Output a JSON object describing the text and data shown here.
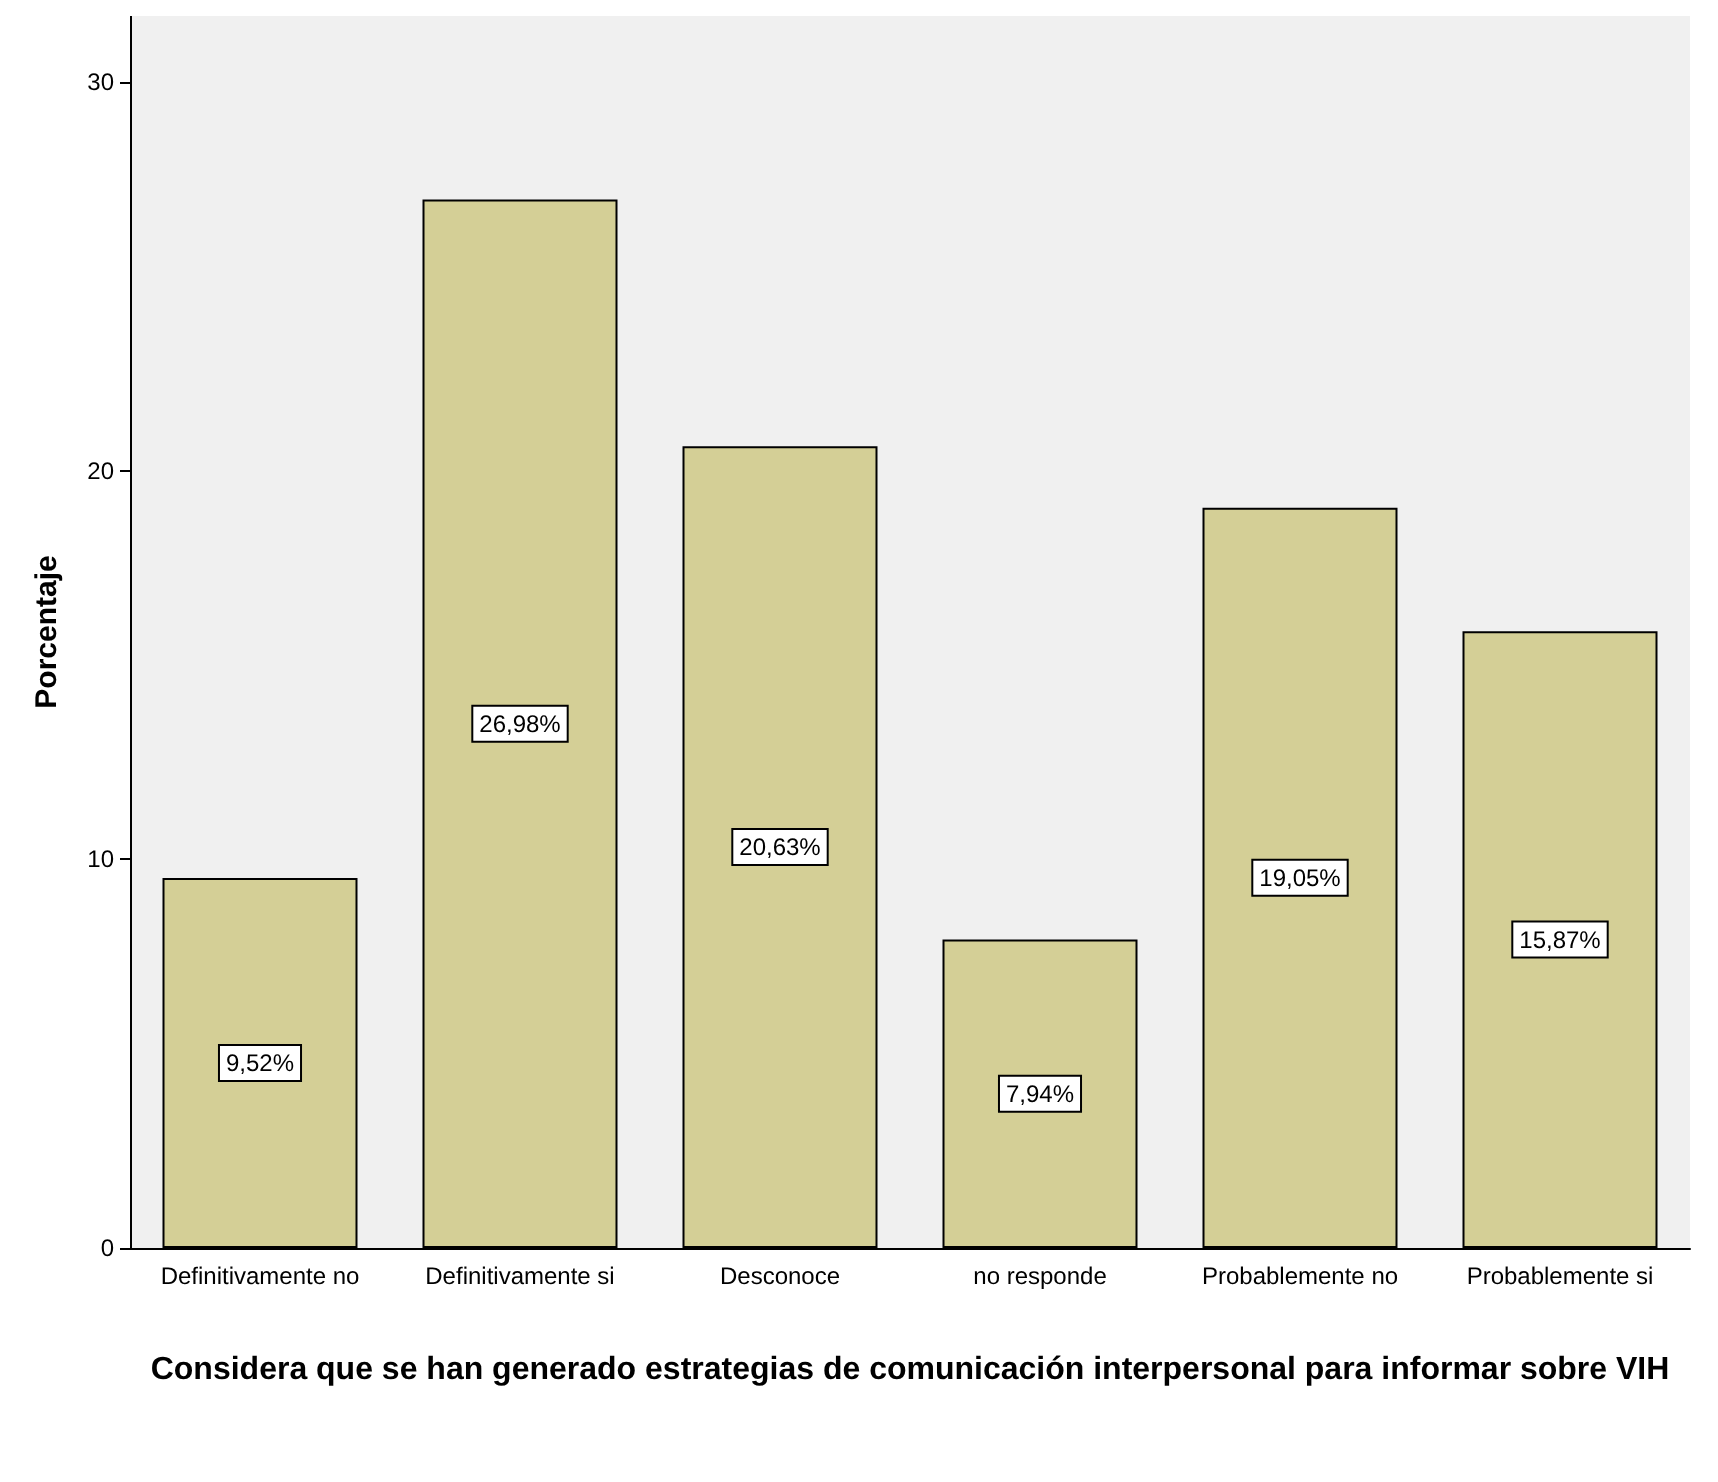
{
  "chart_data": {
    "type": "bar",
    "xlabel": "Considera que se han generado estrategias de comunicación interpersonal para informar sobre VIH",
    "ylabel": "Porcentaje",
    "categories": [
      "Definitivamente no",
      "Definitivamente si",
      "Desconoce",
      "no responde",
      "Probablemente no",
      "Probablemente si"
    ],
    "values": [
      9.52,
      26.98,
      20.63,
      7.94,
      19.05,
      15.87
    ],
    "value_labels": [
      "9,52%",
      "26,98%",
      "20,63%",
      "7,94%",
      "19,05%",
      "15,87%"
    ],
    "color": "#d4cf96",
    "ylim": [
      0,
      31.7
    ],
    "yticks": [
      0,
      10,
      20,
      30
    ],
    "grid": false
  }
}
